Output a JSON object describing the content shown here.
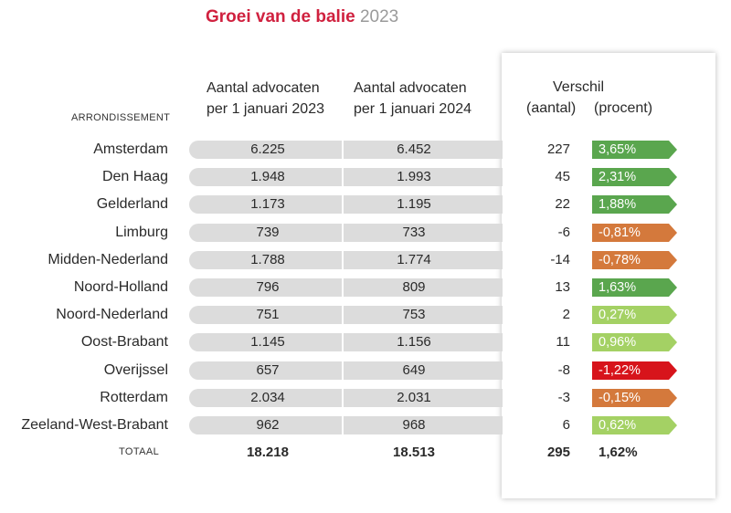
{
  "title": {
    "main": "Groei van de balie",
    "year": "2023"
  },
  "headers": {
    "arrondissement": "ARRONDISSEMENT",
    "col_2023_l1": "Aantal advocaten",
    "col_2023_l2": "per 1 januari 2023",
    "col_2024_l1": "Aantal advocaten",
    "col_2024_l2": "per 1 januari 2024",
    "verschil": "Verschil",
    "aantal": "(aantal)",
    "procent": "(procent)"
  },
  "colors": {
    "dark_green": "#5aa64e",
    "light_green": "#a4d164",
    "orange": "#d4793c",
    "red": "#d7141b",
    "bar_gray": "#dcdcdc",
    "title_red": "#d0213f"
  },
  "chart_data": {
    "type": "table",
    "columns": [
      "Arrondissement",
      "Aantal advocaten per 1 januari 2023",
      "Aantal advocaten per 1 januari 2024",
      "Verschil (aantal)",
      "Verschil (procent)"
    ],
    "rows": [
      {
        "name": "Amsterdam",
        "v2023": "6.225",
        "v2024": "6.452",
        "diff": "227",
        "pct": "3,65%",
        "color": "#5aa64e"
      },
      {
        "name": "Den Haag",
        "v2023": "1.948",
        "v2024": "1.993",
        "diff": "45",
        "pct": "2,31%",
        "color": "#5aa64e"
      },
      {
        "name": "Gelderland",
        "v2023": "1.173",
        "v2024": "1.195",
        "diff": "22",
        "pct": "1,88%",
        "color": "#5aa64e"
      },
      {
        "name": "Limburg",
        "v2023": "739",
        "v2024": "733",
        "diff": "-6",
        "pct": "-0,81%",
        "color": "#d4793c"
      },
      {
        "name": "Midden-Nederland",
        "v2023": "1.788",
        "v2024": "1.774",
        "diff": "-14",
        "pct": "-0,78%",
        "color": "#d4793c"
      },
      {
        "name": "Noord-Holland",
        "v2023": "796",
        "v2024": "809",
        "diff": "13",
        "pct": "1,63%",
        "color": "#5aa64e"
      },
      {
        "name": "Noord-Nederland",
        "v2023": "751",
        "v2024": "753",
        "diff": "2",
        "pct": "0,27%",
        "color": "#a4d164"
      },
      {
        "name": "Oost-Brabant",
        "v2023": "1.145",
        "v2024": "1.156",
        "diff": "11",
        "pct": "0,96%",
        "color": "#a4d164"
      },
      {
        "name": "Overijssel",
        "v2023": "657",
        "v2024": "649",
        "diff": "-8",
        "pct": "-1,22%",
        "color": "#d7141b"
      },
      {
        "name": "Rotterdam",
        "v2023": "2.034",
        "v2024": "2.031",
        "diff": "-3",
        "pct": "-0,15%",
        "color": "#d4793c"
      },
      {
        "name": "Zeeland-West-Brabant",
        "v2023": "962",
        "v2024": "968",
        "diff": "6",
        "pct": "0,62%",
        "color": "#a4d164"
      }
    ],
    "total": {
      "label": "TOTAAL",
      "v2023": "18.218",
      "v2024": "18.513",
      "diff": "295",
      "pct": "1,62%"
    }
  }
}
